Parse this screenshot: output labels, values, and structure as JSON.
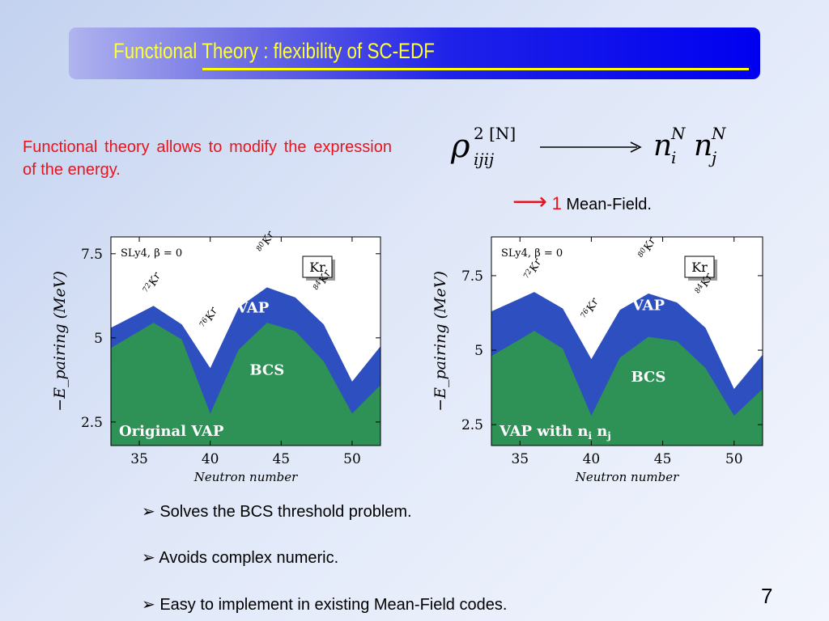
{
  "slide": {
    "title": "Functional Theory : flexibility of SC-EDF",
    "intro": "Functional theory allows to modify the expression of the energy.",
    "formula": {
      "lhs_symbol": "ρ",
      "lhs_super": "2 [N]",
      "lhs_sub": "ijij",
      "rhs": "n",
      "rhs_super": "N",
      "rhs_sub_i": "i",
      "rhs_sub_j": "j"
    },
    "meanfield": {
      "arrow": "⟶",
      "number": "1",
      "label": "Mean-Field."
    },
    "bullets": [
      "Solves the BCS threshold problem.",
      "Avoids complex numeric.",
      "Easy to implement in existing Mean-Field codes."
    ],
    "bullet_marker": "➢",
    "page_number": "7",
    "colors": {
      "vap_band": "#2e4fbf",
      "bcs_fill": "#2e9156",
      "title_text": "#ffff33",
      "intro_text": "#e8141c"
    }
  },
  "chart_data": [
    {
      "type": "area",
      "inset_text": "SLy4, β = 0",
      "nucleus_box": "Kr",
      "xlabel": "Neutron number",
      "ylabel": "−E_pairing (MeV)",
      "xlim": [
        33,
        52
      ],
      "ylim": [
        1.8,
        8.0
      ],
      "xticks": [
        35,
        40,
        45,
        50
      ],
      "yticks": [
        2.5,
        5,
        7.5
      ],
      "isotope_labels": [
        {
          "mass": "72",
          "sym": "Kr",
          "x": 36
        },
        {
          "mass": "76",
          "sym": "Kr",
          "x": 40
        },
        {
          "mass": "80",
          "sym": "Kr",
          "x": 44
        },
        {
          "mass": "84",
          "sym": "Kr",
          "x": 48
        }
      ],
      "series": [
        {
          "name": "VAP",
          "x": [
            33,
            36,
            38,
            40,
            42,
            44,
            46,
            48,
            50,
            52
          ],
          "values": [
            5.3,
            5.95,
            5.4,
            4.1,
            5.9,
            6.5,
            6.2,
            5.4,
            3.7,
            4.75
          ]
        },
        {
          "name": "BCS",
          "x": [
            33,
            36,
            38,
            40,
            42,
            44,
            46,
            48,
            50,
            52
          ],
          "values": [
            4.7,
            5.45,
            4.95,
            2.75,
            4.65,
            5.45,
            5.2,
            4.3,
            2.75,
            3.6
          ]
        }
      ],
      "annotation": "Original VAP"
    },
    {
      "type": "area",
      "inset_text": "SLy4, β = 0",
      "nucleus_box": "Kr",
      "xlabel": "Neutron number",
      "ylabel": "−E_pairing (MeV)",
      "xlim": [
        33,
        52
      ],
      "ylim": [
        1.8,
        8.8
      ],
      "xticks": [
        35,
        40,
        45,
        50
      ],
      "yticks": [
        2.5,
        5,
        7.5
      ],
      "isotope_labels": [
        {
          "mass": "72",
          "sym": "Kr",
          "x": 36
        },
        {
          "mass": "76",
          "sym": "Kr",
          "x": 40
        },
        {
          "mass": "80",
          "sym": "Kr",
          "x": 44
        },
        {
          "mass": "84",
          "sym": "Kr",
          "x": 48
        }
      ],
      "series": [
        {
          "name": "VAP",
          "x": [
            33,
            36,
            38,
            40,
            42,
            44,
            46,
            48,
            50,
            52
          ],
          "values": [
            6.3,
            6.95,
            6.4,
            4.7,
            6.35,
            6.9,
            6.6,
            5.75,
            3.7,
            4.85
          ]
        },
        {
          "name": "BCS",
          "x": [
            33,
            36,
            38,
            40,
            42,
            44,
            46,
            48,
            50,
            52
          ],
          "values": [
            4.8,
            5.65,
            5.05,
            2.8,
            4.75,
            5.45,
            5.3,
            4.4,
            2.8,
            3.7
          ]
        }
      ],
      "annotation_main": "VAP with n",
      "annotation_sub1": "i",
      "annotation_mid": " n",
      "annotation_sub2": "j"
    }
  ]
}
